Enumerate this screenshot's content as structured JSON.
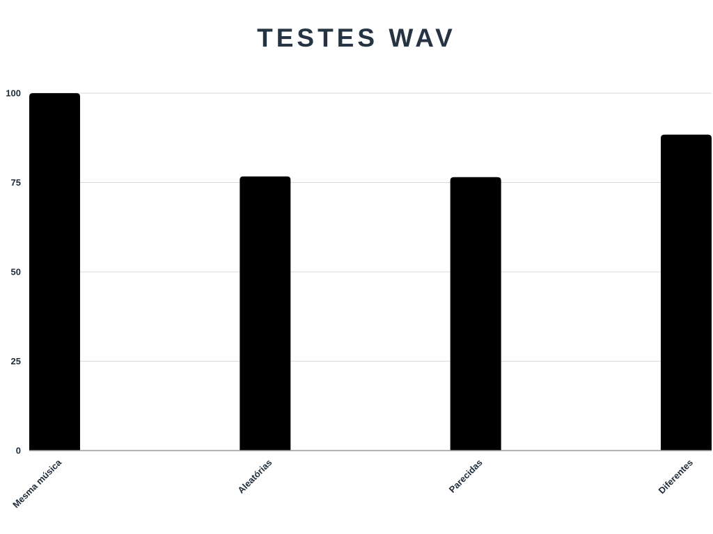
{
  "chart_data": {
    "type": "bar",
    "title": "TESTES WAV",
    "xlabel": "",
    "ylabel": "",
    "categories": [
      "Mesma música",
      "Aleatórias",
      "Parecidas",
      "Diferentes"
    ],
    "values": [
      100,
      76.7,
      76.5,
      88.4
    ],
    "ylim": [
      0,
      100
    ],
    "yticks": [
      0,
      25,
      50,
      75,
      100
    ],
    "grid": true,
    "legend": "none",
    "bar_color": "#000000"
  }
}
